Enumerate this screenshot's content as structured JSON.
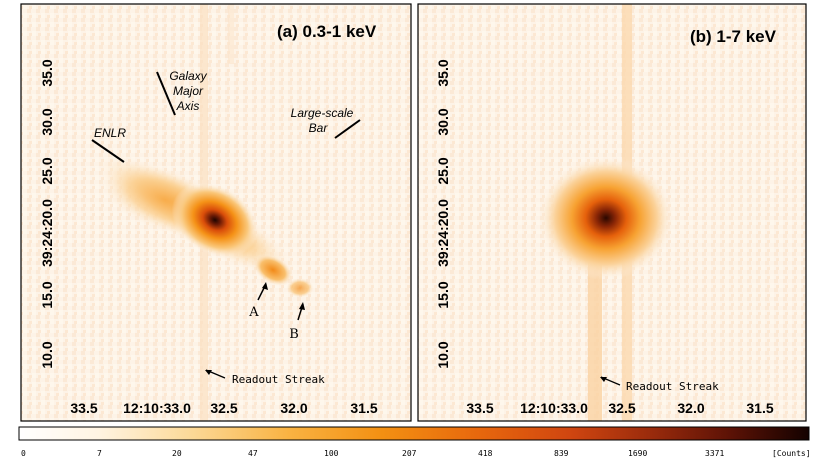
{
  "panels": [
    {
      "title": "(a) 0.3-1 keV",
      "x_ticks": [
        "33.5",
        "12:10:33.0",
        "32.5",
        "32.0",
        "31.5"
      ],
      "y_ticks": [
        "35.0",
        "30.0",
        "25.0",
        "39:24:20.0",
        "15.0",
        "10.0"
      ],
      "annotations": {
        "galaxy_axis": [
          "Galaxy",
          "Major",
          "Axis"
        ],
        "bar": [
          "Large-scale",
          "Bar"
        ],
        "enlr": "ENLR",
        "point_a": "A",
        "point_b": "B",
        "readout": "Readout Streak"
      }
    },
    {
      "title": "(b) 1-7 keV",
      "x_ticks": [
        "33.5",
        "12:10:33.0",
        "32.5",
        "32.0",
        "31.5"
      ],
      "y_ticks": [
        "35.0",
        "30.0",
        "25.0",
        "39:24:20.0",
        "15.0",
        "10.0"
      ],
      "annotations": {
        "readout": "Readout Streak"
      }
    }
  ],
  "colorbar": {
    "ticks": [
      "0",
      "7",
      "20",
      "47",
      "100",
      "207",
      "418",
      "839",
      "1690",
      "3371"
    ],
    "units": "[Counts]",
    "colors": [
      "#ffffff",
      "#fff4e2",
      "#fcd896",
      "#f9b343",
      "#f39012",
      "#e8680d",
      "#cf4510",
      "#9a2b0c",
      "#5c1206",
      "#140200"
    ]
  }
}
